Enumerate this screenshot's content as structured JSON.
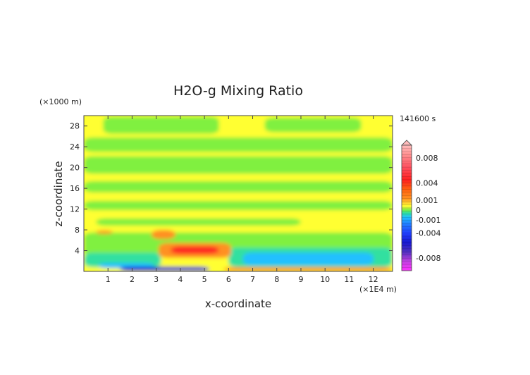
{
  "chart_data": {
    "type": "heatmap",
    "title": "H2O-g Mixing Ratio",
    "xlabel": "x-coordinate",
    "ylabel": "z-coordinate",
    "x_unit": "(×1E4 m)",
    "y_unit": "(×1000 m)",
    "time_label": "141600 s",
    "xlim": [
      0,
      12.8
    ],
    "ylim": [
      0,
      30
    ],
    "x_ticks": [
      "1",
      "2",
      "3",
      "4",
      "5",
      "6",
      "7",
      "8",
      "9",
      "10",
      "11",
      "12"
    ],
    "y_ticks": [
      "4",
      "8",
      "12",
      "16",
      "20",
      "24",
      "28"
    ],
    "colorbar": {
      "labels": [
        "0.008",
        "0.004",
        "0.001",
        "0",
        "-0.001",
        "-0.004",
        "-0.008"
      ],
      "values": [
        0.008,
        0.004,
        0.001,
        0,
        -0.001,
        -0.004,
        -0.008
      ],
      "range": [
        -0.01,
        0.01
      ],
      "stops": [
        {
          "v": -0.01,
          "color": "#ff30ff"
        },
        {
          "v": -0.0085,
          "color": "#c040e0"
        },
        {
          "v": -0.007,
          "color": "#5030c0"
        },
        {
          "v": -0.0055,
          "color": "#1818d0"
        },
        {
          "v": -0.004,
          "color": "#2040ff"
        },
        {
          "v": -0.0025,
          "color": "#2080ff"
        },
        {
          "v": -0.0015,
          "color": "#20c0ff"
        },
        {
          "v": -0.0008,
          "color": "#30e0a0"
        },
        {
          "v": -0.0003,
          "color": "#80f040"
        },
        {
          "v": 0.0,
          "color": "#c8f040"
        },
        {
          "v": 0.0003,
          "color": "#ffff30"
        },
        {
          "v": 0.0008,
          "color": "#ffd030"
        },
        {
          "v": 0.0015,
          "color": "#ff9020"
        },
        {
          "v": 0.003,
          "color": "#ff6010"
        },
        {
          "v": 0.0045,
          "color": "#ff2020"
        },
        {
          "v": 0.0065,
          "color": "#ff5060"
        },
        {
          "v": 0.0085,
          "color": "#ff9090"
        },
        {
          "v": 0.01,
          "color": "#ffbcbc"
        }
      ]
    },
    "regions": [
      {
        "desc": "base field",
        "x": [
          0,
          12.8
        ],
        "z": [
          0,
          30
        ],
        "value": 0.0002
      },
      {
        "desc": "upper green patch",
        "x": [
          0.8,
          5.6
        ],
        "z": [
          26.5,
          29.8
        ],
        "value": -0.0003
      },
      {
        "desc": "upper right green",
        "x": [
          7.5,
          11.5
        ],
        "z": [
          26.8,
          29.6
        ],
        "value": -0.0003
      },
      {
        "desc": "green band 24",
        "x": [
          0,
          12.8
        ],
        "z": [
          23,
          25.8
        ],
        "value": -0.0003
      },
      {
        "desc": "green band 20",
        "x": [
          0,
          12.8
        ],
        "z": [
          18.8,
          22.2
        ],
        "value": -0.0003
      },
      {
        "desc": "green band 17",
        "x": [
          0,
          12.8
        ],
        "z": [
          15.2,
          17.4
        ],
        "value": -0.0003
      },
      {
        "desc": "green band 13",
        "x": [
          0,
          12.8
        ],
        "z": [
          11.8,
          13.6
        ],
        "value": -0.0003
      },
      {
        "desc": "green low band",
        "x": [
          0,
          12.8
        ],
        "z": [
          3,
          7.5
        ],
        "value": -0.0003
      },
      {
        "desc": "green z10",
        "x": [
          0.5,
          9
        ],
        "z": [
          8.8,
          10.2
        ],
        "value": -0.0003
      },
      {
        "desc": "cyan lower left",
        "x": [
          0,
          3.2
        ],
        "z": [
          0.8,
          3.6
        ],
        "value": -0.0008
      },
      {
        "desc": "cyan lower right",
        "x": [
          6,
          12.8
        ],
        "z": [
          0.8,
          4.6
        ],
        "value": -0.0008
      },
      {
        "desc": "blue lower right",
        "x": [
          6.6,
          12
        ],
        "z": [
          1.2,
          3.6
        ],
        "value": -0.0018
      },
      {
        "desc": "blue lower left",
        "x": [
          0.6,
          2.9
        ],
        "z": [
          0.6,
          1.6
        ],
        "value": -0.0018
      },
      {
        "desc": "dark blue floor",
        "x": [
          1.5,
          5.2
        ],
        "z": [
          0,
          0.9
        ],
        "value": -0.005
      },
      {
        "desc": "orange plume",
        "x": [
          3.1,
          6.1
        ],
        "z": [
          2.6,
          5.5
        ],
        "value": 0.0018
      },
      {
        "desc": "red plume core",
        "x": [
          3.6,
          5.6
        ],
        "z": [
          3.4,
          4.8
        ],
        "value": 0.004
      },
      {
        "desc": "orange streak z7",
        "x": [
          2.8,
          3.8
        ],
        "z": [
          6.2,
          8
        ],
        "value": 0.0012
      },
      {
        "desc": "orange dot left",
        "x": [
          0.5,
          1.2
        ],
        "z": [
          7.2,
          7.9
        ],
        "value": 0.0012
      },
      {
        "desc": "orange floor right",
        "x": [
          5.8,
          12.8
        ],
        "z": [
          0,
          0.8
        ],
        "value": 0.0014
      }
    ]
  }
}
